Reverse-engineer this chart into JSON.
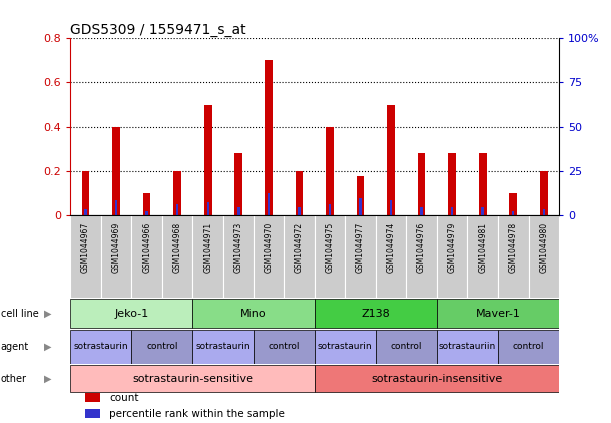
{
  "title": "GDS5309 / 1559471_s_at",
  "samples": [
    "GSM1044967",
    "GSM1044969",
    "GSM1044966",
    "GSM1044968",
    "GSM1044971",
    "GSM1044973",
    "GSM1044970",
    "GSM1044972",
    "GSM1044975",
    "GSM1044977",
    "GSM1044974",
    "GSM1044976",
    "GSM1044979",
    "GSM1044981",
    "GSM1044978",
    "GSM1044980"
  ],
  "red_values": [
    0.2,
    0.4,
    0.1,
    0.2,
    0.5,
    0.28,
    0.7,
    0.2,
    0.4,
    0.18,
    0.5,
    0.28,
    0.28,
    0.28,
    0.1,
    0.2
  ],
  "blue_values": [
    0.03,
    0.07,
    0.02,
    0.05,
    0.06,
    0.04,
    0.1,
    0.04,
    0.05,
    0.08,
    0.07,
    0.04,
    0.04,
    0.04,
    0.02,
    0.03
  ],
  "ylim_left": [
    0,
    0.8
  ],
  "ylim_right": [
    0,
    100
  ],
  "yticks_left": [
    0,
    0.2,
    0.4,
    0.6,
    0.8
  ],
  "yticks_right": [
    0,
    25,
    50,
    75,
    100
  ],
  "ytick_labels_left": [
    "0",
    "0.2",
    "0.4",
    "0.6",
    "0.8"
  ],
  "ytick_labels_right": [
    "0",
    "25",
    "50",
    "75",
    "100%"
  ],
  "red_color": "#CC0000",
  "blue_color": "#3333CC",
  "red_bar_width": 0.25,
  "blue_bar_width": 0.08,
  "cell_line_groups": [
    {
      "label": "Jeko-1",
      "start": 0,
      "end": 4,
      "color": "#BBEEBB"
    },
    {
      "label": "Mino",
      "start": 4,
      "end": 8,
      "color": "#88DD88"
    },
    {
      "label": "Z138",
      "start": 8,
      "end": 12,
      "color": "#44CC44"
    },
    {
      "label": "Maver-1",
      "start": 12,
      "end": 16,
      "color": "#66CC66"
    }
  ],
  "agent_groups": [
    {
      "label": "sotrastaurin",
      "start": 0,
      "end": 2,
      "color": "#AAAAEE"
    },
    {
      "label": "control",
      "start": 2,
      "end": 4,
      "color": "#9999CC"
    },
    {
      "label": "sotrastaurin",
      "start": 4,
      "end": 6,
      "color": "#AAAAEE"
    },
    {
      "label": "control",
      "start": 6,
      "end": 8,
      "color": "#9999CC"
    },
    {
      "label": "sotrastaurin",
      "start": 8,
      "end": 10,
      "color": "#AAAAEE"
    },
    {
      "label": "control",
      "start": 10,
      "end": 12,
      "color": "#9999CC"
    },
    {
      "label": "sotrastauriin",
      "start": 12,
      "end": 14,
      "color": "#AAAAEE"
    },
    {
      "label": "control",
      "start": 14,
      "end": 16,
      "color": "#9999CC"
    }
  ],
  "other_groups": [
    {
      "label": "sotrastaurin-sensitive",
      "start": 0,
      "end": 8,
      "color": "#FFBBBB"
    },
    {
      "label": "sotrastaurin-insensitive",
      "start": 8,
      "end": 16,
      "color": "#EE7777"
    }
  ],
  "row_labels": [
    "cell line",
    "agent",
    "other"
  ],
  "legend_items": [
    {
      "color": "#CC0000",
      "label": "count"
    },
    {
      "color": "#3333CC",
      "label": "percentile rank within the sample"
    }
  ],
  "axis_color_left": "#CC0000",
  "axis_color_right": "#0000CC",
  "xtick_bg": "#CCCCCC",
  "sample_label_fontsize": 5.5,
  "grid_linestyle": "dotted",
  "grid_linewidth": 0.8
}
